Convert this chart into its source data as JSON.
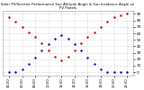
{
  "title": "Solar PV/Inverter Performance Sun Altitude Angle & Sun Incidence Angle on PV Panels",
  "bg_color": "#ffffff",
  "plot_bg_color": "#ffffff",
  "grid_color": "#aaaaaa",
  "blue_color": "#0000cc",
  "red_color": "#cc0000",
  "ylim": [
    -5,
    95
  ],
  "yticks": [
    0,
    10,
    20,
    30,
    40,
    50,
    60,
    70,
    80,
    90
  ],
  "yticklabels": [
    "0",
    "10",
    "20",
    "30",
    "40",
    "50",
    "60",
    "70",
    "80",
    "90"
  ],
  "x_hours": [
    4,
    5,
    6,
    7,
    8,
    9,
    10,
    11,
    12,
    13,
    14,
    15,
    16,
    17,
    18,
    19,
    20,
    21,
    22
  ],
  "blue_y": [
    0,
    0,
    5,
    12,
    22,
    33,
    43,
    52,
    57,
    52,
    43,
    33,
    22,
    12,
    5,
    0,
    0,
    0,
    0
  ],
  "red_y": [
    85,
    78,
    70,
    62,
    54,
    44,
    34,
    24,
    18,
    24,
    34,
    44,
    54,
    62,
    70,
    78,
    85,
    88,
    90
  ],
  "xtick_positions": [
    4,
    6,
    8,
    10,
    12,
    14,
    16,
    18,
    20,
    22
  ],
  "xtick_labels": [
    "04:00",
    "06:00",
    "08:00",
    "10:00",
    "12:00",
    "14:00",
    "16:00",
    "18:00",
    "20:00",
    "22:00"
  ],
  "title_color": "#000000",
  "tick_color": "#000000",
  "title_fontsize": 2.8,
  "tick_fontsize": 3.0
}
